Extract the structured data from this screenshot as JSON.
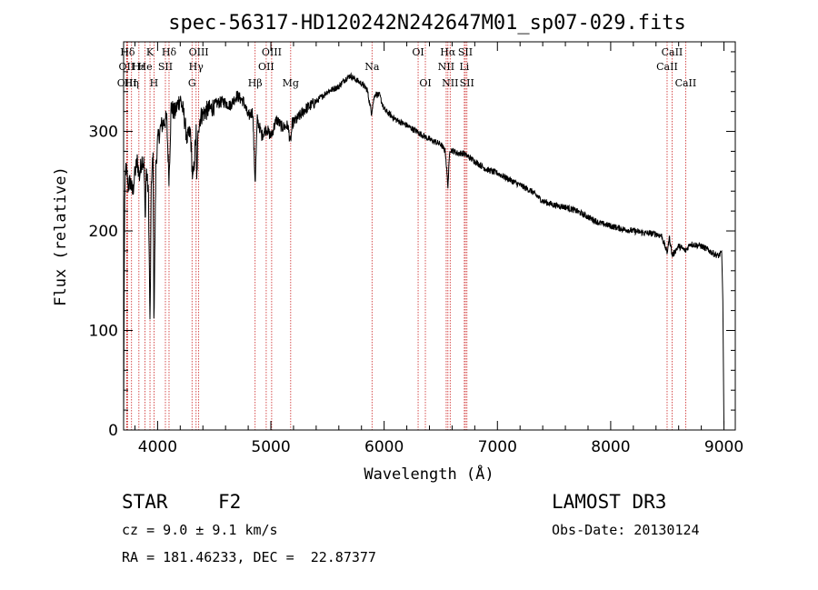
{
  "chart_data": {
    "type": "line",
    "title": "spec-56317-HD120242N242647M01_sp07-029.fits",
    "xlabel": "Wavelength (Å)",
    "ylabel": "Flux (relative)",
    "xlim": [
      3700,
      9100
    ],
    "ylim": [
      0,
      390
    ],
    "xticks": [
      4000,
      5000,
      6000,
      7000,
      8000,
      9000
    ],
    "yticks": [
      0,
      100,
      200,
      300
    ],
    "x_minor_step": 200,
    "y_minor_step": 20,
    "grid": false,
    "series": [
      {
        "name": "flux",
        "x": [
          3700,
          3705,
          3710,
          3720,
          3740,
          3760,
          3780,
          3800,
          3820,
          3840,
          3860,
          3880,
          3890,
          3900,
          3920,
          3933,
          3945,
          3960,
          3968,
          3985,
          4000,
          4030,
          4060,
          4080,
          4101,
          4120,
          4150,
          4180,
          4200,
          4230,
          4260,
          4290,
          4310,
          4320,
          4340,
          4345,
          4360,
          4380,
          4420,
          4470,
          4520,
          4580,
          4640,
          4700,
          4760,
          4800,
          4840,
          4861,
          4880,
          4920,
          4960,
          5000,
          5050,
          5100,
          5150,
          5172,
          5190,
          5230,
          5300,
          5400,
          5500,
          5600,
          5650,
          5700,
          5750,
          5800,
          5850,
          5889,
          5896,
          5920,
          5960,
          6000,
          6100,
          6200,
          6300,
          6400,
          6500,
          6540,
          6563,
          6580,
          6650,
          6700,
          6800,
          6900,
          7000,
          7100,
          7200,
          7300,
          7400,
          7500,
          7600,
          7700,
          7800,
          7900,
          8000,
          8100,
          8200,
          8300,
          8400,
          8450,
          8498,
          8520,
          8542,
          8600,
          8662,
          8700,
          8800,
          8900,
          8950,
          8980,
          8990,
          9000
        ],
        "y": [
          5,
          140,
          235,
          265,
          245,
          250,
          238,
          258,
          270,
          255,
          272,
          268,
          210,
          262,
          235,
          100,
          250,
          275,
          110,
          265,
          290,
          305,
          310,
          312,
          252,
          325,
          318,
          328,
          333,
          318,
          292,
          300,
          250,
          262,
          300,
          248,
          305,
          315,
          320,
          323,
          328,
          330,
          326,
          336,
          330,
          315,
          320,
          248,
          312,
          296,
          303,
          295,
          312,
          304,
          306,
          288,
          308,
          312,
          322,
          330,
          340,
          345,
          352,
          356,
          352,
          348,
          342,
          318,
          325,
          338,
          336,
          322,
          312,
          306,
          299,
          292,
          287,
          280,
          245,
          282,
          278,
          278,
          270,
          262,
          258,
          252,
          246,
          240,
          230,
          226,
          224,
          220,
          214,
          208,
          205,
          202,
          200,
          198,
          197,
          195,
          178,
          194,
          175,
          185,
          180,
          187,
          185,
          178,
          175,
          178,
          130,
          5
        ]
      }
    ],
    "spectral_lines": [
      {
        "label": "Hδ",
        "x": 3735,
        "row": 1
      },
      {
        "label": "OII",
        "x": 3727,
        "row": 2
      },
      {
        "label": "OIII",
        "x": 3730,
        "row": 3
      },
      {
        "label": "Hε",
        "x": 3835,
        "row": 2
      },
      {
        "label": "Hη",
        "x": 3770,
        "row": 3
      },
      {
        "label": "K",
        "x": 3933,
        "row": 1
      },
      {
        "label": "He",
        "x": 3889,
        "row": 2
      },
      {
        "label": "SII",
        "x": 4069,
        "row": 2
      },
      {
        "label": "H",
        "x": 3968,
        "row": 3
      },
      {
        "label": "Hδ",
        "x": 4101,
        "row": 1
      },
      {
        "label": "OIII",
        "x": 4363,
        "row": 1
      },
      {
        "label": "Hγ",
        "x": 4340,
        "row": 2
      },
      {
        "label": "G",
        "x": 4304,
        "row": 3
      },
      {
        "label": "OIII",
        "x": 5007,
        "row": 1
      },
      {
        "label": "OII",
        "x": 4959,
        "row": 2
      },
      {
        "label": "Hβ",
        "x": 4861,
        "row": 3
      },
      {
        "label": "Mg",
        "x": 5175,
        "row": 3
      },
      {
        "label": "Na",
        "x": 5893,
        "row": 2
      },
      {
        "label": "OI",
        "x": 6300,
        "row": 1
      },
      {
        "label": "OI",
        "x": 6364,
        "row": 3
      },
      {
        "label": "Hα",
        "x": 6563,
        "row": 1
      },
      {
        "label": "SII",
        "x": 6717,
        "row": 1
      },
      {
        "label": "NII",
        "x": 6548,
        "row": 2
      },
      {
        "label": "Li",
        "x": 6708,
        "row": 2
      },
      {
        "label": "NII",
        "x": 6583,
        "row": 3
      },
      {
        "label": "SII",
        "x": 6731,
        "row": 3
      },
      {
        "label": "CaII",
        "x": 8542,
        "row": 1
      },
      {
        "label": "CaII",
        "x": 8498,
        "row": 2
      },
      {
        "label": "CaII",
        "x": 8662,
        "row": 3
      }
    ]
  },
  "info": {
    "class_label": "STAR",
    "subclass": "F2",
    "survey": "LAMOST DR3",
    "velocity": "cz = 9.0 ± 9.1 km/s",
    "obs_date": "Obs-Date: 20130124",
    "coords": "RA = 181.46233, DEC =  22.87377"
  },
  "colors": {
    "line_marker": "#cc2222",
    "spectrum": "#000000",
    "axes": "#000000"
  }
}
